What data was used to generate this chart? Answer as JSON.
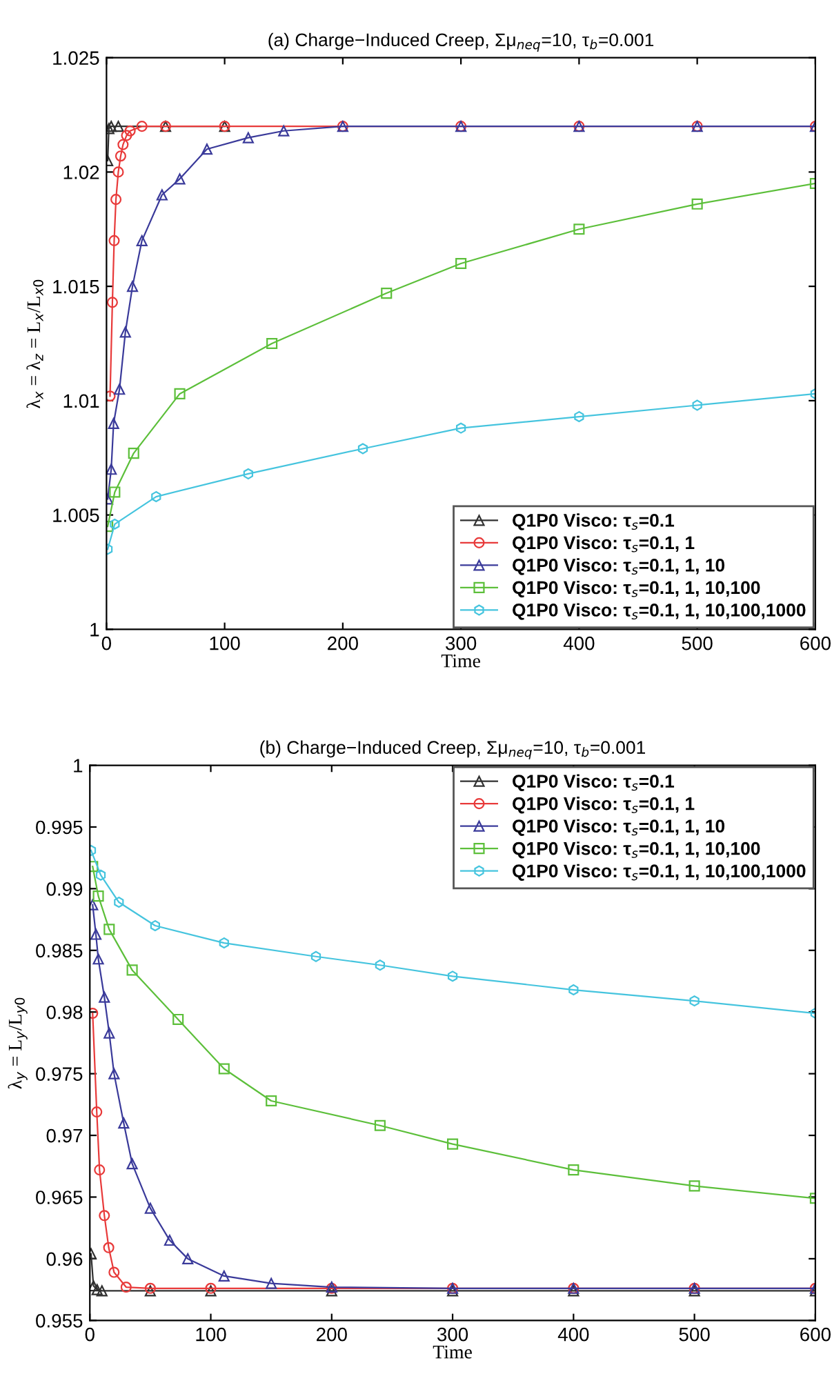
{
  "chart_data": [
    {
      "type": "line",
      "title": "(a) Charge−Induced Creep, Σμ$_{neq}$=10, τ$_{b}$=0.001",
      "xlabel": "Time",
      "ylabel": "λ$_{x}$ = λ$_{z}$ = L$_{x}$/L$_{x0}$",
      "xlim": [
        0,
        600
      ],
      "xticks": [
        0,
        100,
        200,
        300,
        400,
        500,
        600
      ],
      "ylim": [
        1,
        1.025
      ],
      "yticks": [
        1,
        1.005,
        1.01,
        1.015,
        1.02,
        1.025
      ],
      "grid": false,
      "legend": "bottom right",
      "line_style": "solid",
      "series": [
        {
          "name": "Q1P0 Visco: τ$_{s}$=0.1",
          "color": "#303030",
          "marker": "triangle",
          "x": [
            1,
            2,
            4,
            10,
            50,
            100
          ],
          "values": [
            1.0205,
            1.0219,
            1.022,
            1.022,
            1.022,
            1.022
          ]
        },
        {
          "name": "Q1P0 Visco: τ$_{s}$=0.1, 1",
          "color": "#e83a3a",
          "marker": "circle",
          "x": [
            3,
            5,
            6.5,
            8,
            10,
            12,
            14,
            17,
            20,
            30,
            50,
            100,
            200,
            300,
            400,
            500,
            600
          ],
          "values": [
            1.0102,
            1.0143,
            1.017,
            1.0188,
            1.02,
            1.0207,
            1.0212,
            1.0216,
            1.0218,
            1.022,
            1.022,
            1.022,
            1.022,
            1.022,
            1.022,
            1.022,
            1.022
          ]
        },
        {
          "name": "Q1P0 Visco: τ$_{s}$=0.1, 1, 10",
          "color": "#3a3a9a",
          "marker": "triangle",
          "x": [
            1,
            4,
            6,
            11,
            16,
            22,
            30,
            47,
            62,
            85,
            120,
            150,
            200,
            300,
            400,
            500,
            600
          ],
          "values": [
            1.0057,
            1.007,
            1.009,
            1.0105,
            1.013,
            1.015,
            1.017,
            1.019,
            1.0197,
            1.021,
            1.0215,
            1.0218,
            1.022,
            1.022,
            1.022,
            1.022,
            1.022
          ]
        },
        {
          "name": "Q1P0 Visco: τ$_{s}$=0.1, 1, 10,100",
          "color": "#5cbf3a",
          "marker": "square",
          "x": [
            1,
            7,
            23,
            62,
            140,
            237,
            300,
            400,
            500,
            600
          ],
          "values": [
            1.0045,
            1.006,
            1.0077,
            1.0103,
            1.0125,
            1.0147,
            1.016,
            1.0175,
            1.0186,
            1.0195
          ]
        },
        {
          "name": "Q1P0 Visco: τ$_{s}$=0.1, 1, 10,100,1000",
          "color": "#45c4de",
          "marker": "star",
          "x": [
            1,
            7,
            42,
            120,
            217,
            300,
            400,
            500,
            600
          ],
          "values": [
            1.0035,
            1.0046,
            1.0058,
            1.0068,
            1.0079,
            1.0088,
            1.0093,
            1.0098,
            1.0103
          ]
        }
      ]
    },
    {
      "type": "line",
      "title": "(b) Charge−Induced Creep, Σμ$_{neq}$=10, τ$_{b}$=0.001",
      "xlabel": "Time",
      "ylabel": "λ$_{y}$ = L$_{y}$/L$_{y0}$",
      "xlim": [
        0,
        600
      ],
      "xticks": [
        0,
        100,
        200,
        300,
        400,
        500,
        600
      ],
      "ylim": [
        0.955,
        1
      ],
      "yticks": [
        0.955,
        0.96,
        0.965,
        0.97,
        0.975,
        0.98,
        0.985,
        0.99,
        0.995,
        1
      ],
      "grid": false,
      "legend": "top right",
      "line_style": "solid",
      "series": [
        {
          "name": "Q1P0 Visco: τ$_{s}$=0.1",
          "color": "#303030",
          "marker": "triangle",
          "x": [
            1,
            3,
            6,
            10,
            50,
            100,
            200,
            300,
            400,
            500,
            600
          ],
          "values": [
            0.9604,
            0.9578,
            0.9575,
            0.9574,
            0.9574,
            0.9574,
            0.9574,
            0.9574,
            0.9574,
            0.9574,
            0.9574
          ]
        },
        {
          "name": "Q1P0 Visco: τ$_{s}$=0.1, 1",
          "color": "#e83a3a",
          "marker": "circle",
          "x": [
            2.3,
            5.7,
            8,
            12,
            15.6,
            20,
            30,
            50,
            100,
            200,
            300,
            400,
            500,
            600
          ],
          "values": [
            0.9799,
            0.9719,
            0.9672,
            0.9635,
            0.9609,
            0.9589,
            0.9577,
            0.9576,
            0.9576,
            0.9576,
            0.9576,
            0.9576,
            0.9576,
            0.9576
          ]
        },
        {
          "name": "Q1P0 Visco: τ$_{s}$=0.1, 1, 10",
          "color": "#3a3a9a",
          "marker": "triangle",
          "x": [
            2.3,
            5,
            7,
            12,
            16,
            20,
            28,
            35,
            50,
            66,
            81,
            111,
            150,
            200,
            300,
            400,
            500,
            600
          ],
          "values": [
            0.9887,
            0.9863,
            0.9843,
            0.9812,
            0.9783,
            0.975,
            0.971,
            0.9677,
            0.9641,
            0.9615,
            0.96,
            0.9586,
            0.958,
            0.9577,
            0.9576,
            0.9576,
            0.9576,
            0.9576
          ]
        },
        {
          "name": "Q1P0 Visco: τ$_{s}$=0.1, 1, 10,100",
          "color": "#5cbf3a",
          "marker": "square",
          "x": [
            2.3,
            7,
            16,
            35,
            73,
            111,
            150,
            240,
            300,
            400,
            500,
            600
          ],
          "values": [
            0.9918,
            0.9894,
            0.9867,
            0.9834,
            0.9794,
            0.9754,
            0.9728,
            0.9708,
            0.9693,
            0.9672,
            0.9659,
            0.9649
          ]
        },
        {
          "name": "Q1P0 Visco: τ$_{s}$=0.1, 1, 10,100,1000",
          "color": "#45c4de",
          "marker": "star",
          "x": [
            1,
            9,
            24,
            54,
            111,
            187,
            240,
            300,
            400,
            500,
            600
          ],
          "values": [
            0.9931,
            0.9911,
            0.9889,
            0.987,
            0.9856,
            0.9845,
            0.9838,
            0.9829,
            0.9818,
            0.9809,
            0.9799
          ]
        }
      ]
    }
  ]
}
